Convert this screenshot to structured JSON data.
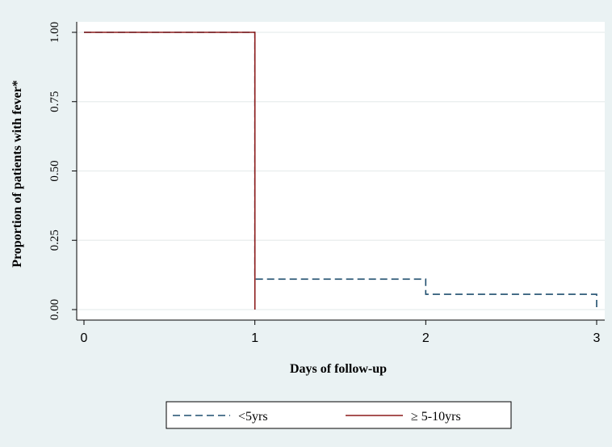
{
  "chart_data": {
    "type": "line",
    "step": true,
    "xlabel": "Days of follow-up",
    "ylabel": "Proportion of patients with fever*",
    "xlim": [
      0,
      3
    ],
    "ylim": [
      0,
      1
    ],
    "x_ticks": [
      {
        "value": 0,
        "label": "0"
      },
      {
        "value": 1,
        "label": "1"
      },
      {
        "value": 2,
        "label": "2"
      },
      {
        "value": 3,
        "label": "3"
      }
    ],
    "y_ticks": [
      {
        "value": 0,
        "label": "0.00"
      },
      {
        "value": 0.25,
        "label": "0.25"
      },
      {
        "value": 0.5,
        "label": "0.50"
      },
      {
        "value": 0.75,
        "label": "0.75"
      },
      {
        "value": 1,
        "label": "1.00"
      }
    ],
    "grid": true,
    "legend_position": "bottom",
    "series": [
      {
        "name": "<5yrs",
        "color": "#1f4e6e",
        "dash": "dashed",
        "points": [
          [
            0,
            1.0
          ],
          [
            1,
            1.0
          ],
          [
            1,
            0.11
          ],
          [
            2,
            0.11
          ],
          [
            2,
            0.055
          ],
          [
            3,
            0.055
          ],
          [
            3,
            0.0
          ]
        ]
      },
      {
        "name": "≥ 5-10yrs",
        "color": "#8b1a1a",
        "dash": "solid",
        "points": [
          [
            0,
            1.0
          ],
          [
            1,
            1.0
          ],
          [
            1,
            0.0
          ]
        ]
      }
    ]
  }
}
